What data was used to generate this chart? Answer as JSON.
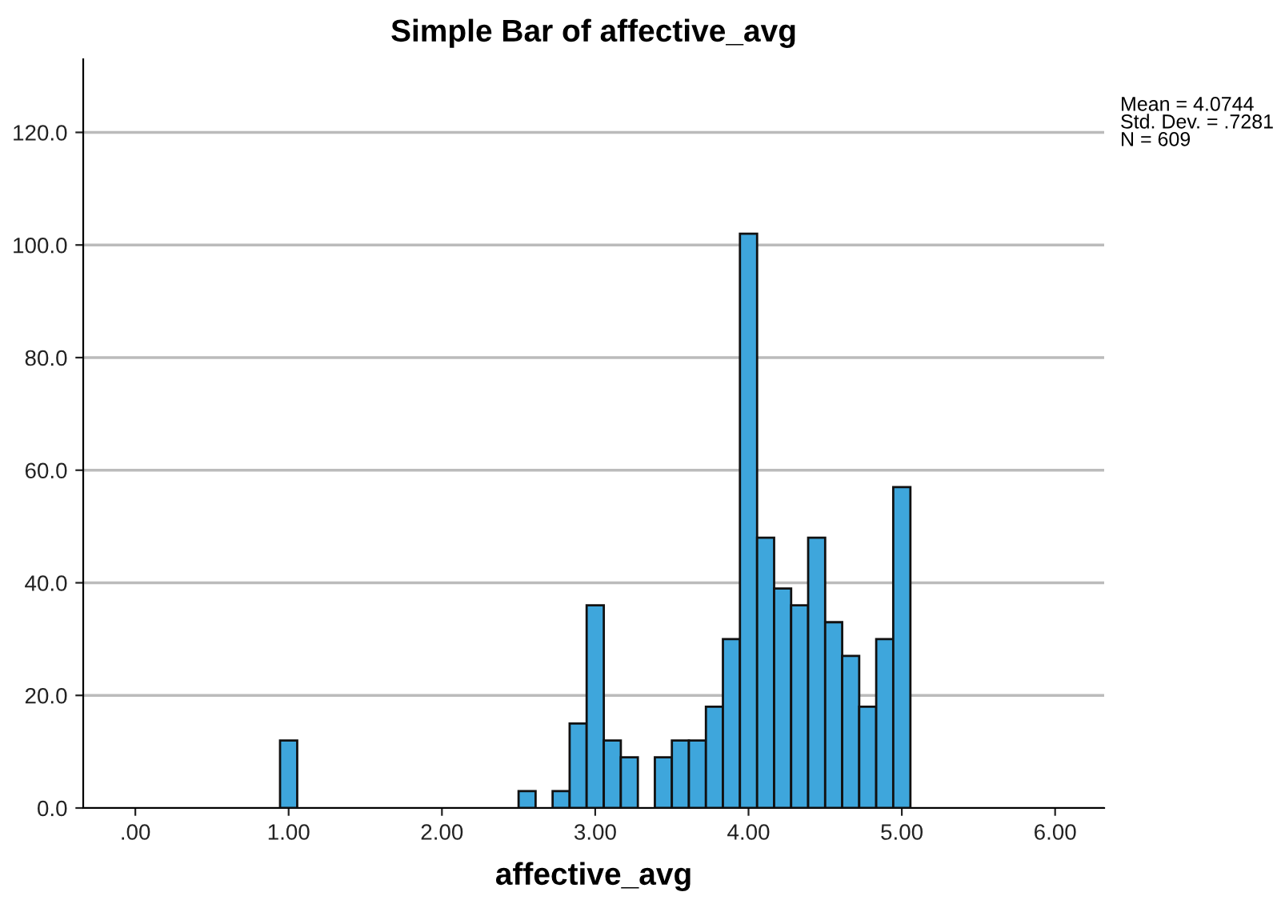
{
  "chart_data": {
    "type": "histogram",
    "title": "Simple Bar of affective_avg",
    "xlabel": "affective_avg",
    "bins": [
      0.944,
      1.056,
      1.167,
      1.278,
      1.389,
      1.5,
      1.611,
      1.722,
      1.833,
      1.944,
      2.056,
      2.167,
      2.278,
      2.389,
      2.5,
      2.611,
      2.722,
      2.833,
      2.944,
      3.056,
      3.167,
      3.278,
      3.389,
      3.5,
      3.611,
      3.722,
      3.833,
      3.944,
      4.056,
      4.167,
      4.278,
      4.389,
      4.5,
      4.611,
      4.722,
      4.833,
      4.944,
      5.056
    ],
    "values": [
      12,
      0,
      0,
      0,
      0,
      0,
      0,
      0,
      0,
      0,
      0,
      0,
      0,
      0,
      3,
      0,
      3,
      15,
      36,
      12,
      9,
      0,
      9,
      12,
      12,
      18,
      30,
      102,
      48,
      39,
      36,
      48,
      33,
      27,
      18,
      30,
      57
    ],
    "color": "#3ea6dc",
    "xlim": [
      -0.34,
      6.32
    ],
    "xticks": [
      {
        "value": 0,
        "label": ".00"
      },
      {
        "value": 1,
        "label": "1.00"
      },
      {
        "value": 2,
        "label": "2.00"
      },
      {
        "value": 3,
        "label": "3.00"
      },
      {
        "value": 4,
        "label": "4.00"
      },
      {
        "value": 5,
        "label": "5.00"
      },
      {
        "value": 6,
        "label": "6.00"
      }
    ],
    "ylim": [
      0,
      133
    ],
    "yticks": [
      {
        "value": 0,
        "label": "0.0"
      },
      {
        "value": 20,
        "label": "20.0"
      },
      {
        "value": 40,
        "label": "40.0"
      },
      {
        "value": 60,
        "label": "60.0"
      },
      {
        "value": 80,
        "label": "80.0"
      },
      {
        "value": 100,
        "label": "100.0"
      },
      {
        "value": 120,
        "label": "120.0"
      }
    ],
    "grid": "y",
    "annotations": [
      "Mean = 4.0744",
      "Std. Dev. = .7281",
      "N = 609"
    ]
  }
}
